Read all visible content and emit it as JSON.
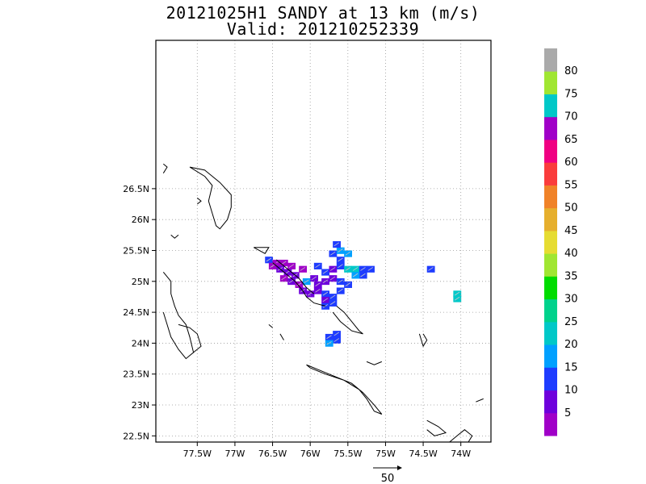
{
  "title": {
    "line1": "20121025H1 SANDY at 13 km (m/s)",
    "line2": "Valid: 201210252339"
  },
  "map": {
    "lon_range": [
      -78.05,
      -73.6
    ],
    "lat_range": [
      22.4,
      28.9
    ],
    "lon_ticks": [
      {
        "value": -77.5,
        "label": "77.5W"
      },
      {
        "value": -77.0,
        "label": "77W"
      },
      {
        "value": -76.5,
        "label": "76.5W"
      },
      {
        "value": -76.0,
        "label": "76W"
      },
      {
        "value": -75.5,
        "label": "75.5W"
      },
      {
        "value": -75.0,
        "label": "75W"
      },
      {
        "value": -74.5,
        "label": "74.5W"
      },
      {
        "value": -74.0,
        "label": "74W"
      }
    ],
    "lat_ticks": [
      {
        "value": 26.5,
        "label": "26.5N"
      },
      {
        "value": 26.0,
        "label": "26N"
      },
      {
        "value": 25.5,
        "label": "25.5N"
      },
      {
        "value": 25.0,
        "label": "25N"
      },
      {
        "value": 24.5,
        "label": "24.5N"
      },
      {
        "value": 24.0,
        "label": "24N"
      },
      {
        "value": 23.5,
        "label": "23.5N"
      },
      {
        "value": 23.0,
        "label": "23N"
      },
      {
        "value": 22.5,
        "label": "22.5N"
      }
    ],
    "grid": "dotted",
    "coastline_color": "#000000"
  },
  "colorbar": {
    "labels": [
      "5",
      "10",
      "15",
      "20",
      "25",
      "30",
      "35",
      "40",
      "45",
      "50",
      "55",
      "60",
      "65",
      "70",
      "75",
      "80"
    ],
    "colors": [
      "#a000c8",
      "#6e00dc",
      "#1e3cff",
      "#00a0ff",
      "#00c8c8",
      "#00d28c",
      "#00dc00",
      "#a0e632",
      "#e6dc32",
      "#e6af2d",
      "#f08228",
      "#fa3c3c",
      "#f00082",
      "#a000c8",
      "#00c8c8",
      "#a0e632",
      "#aaaaaa"
    ]
  },
  "reference_vector": {
    "label": "50"
  },
  "wind_cells": [
    {
      "lon": -76.55,
      "lat": 25.35,
      "c": "#1e3cff"
    },
    {
      "lon": -76.45,
      "lat": 25.3,
      "c": "#a000c8"
    },
    {
      "lon": -76.35,
      "lat": 25.3,
      "c": "#a000c8"
    },
    {
      "lon": -76.25,
      "lat": 25.25,
      "c": "#a000c8"
    },
    {
      "lon": -76.5,
      "lat": 25.25,
      "c": "#a000c8"
    },
    {
      "lon": -76.4,
      "lat": 25.2,
      "c": "#6e00dc"
    },
    {
      "lon": -76.3,
      "lat": 25.15,
      "c": "#6e00dc"
    },
    {
      "lon": -76.2,
      "lat": 25.1,
      "c": "#6e00dc"
    },
    {
      "lon": -76.1,
      "lat": 25.2,
      "c": "#a000c8"
    },
    {
      "lon": -76.35,
      "lat": 25.05,
      "c": "#a000c8"
    },
    {
      "lon": -76.25,
      "lat": 25.0,
      "c": "#6e00dc"
    },
    {
      "lon": -76.15,
      "lat": 24.95,
      "c": "#a000c8"
    },
    {
      "lon": -76.05,
      "lat": 25.0,
      "c": "#00a0ff"
    },
    {
      "lon": -75.95,
      "lat": 25.05,
      "c": "#6e00dc"
    },
    {
      "lon": -76.1,
      "lat": 24.85,
      "c": "#6e00dc"
    },
    {
      "lon": -76.0,
      "lat": 24.8,
      "c": "#6e00dc"
    },
    {
      "lon": -75.9,
      "lat": 24.85,
      "c": "#6e00dc"
    },
    {
      "lon": -75.8,
      "lat": 24.8,
      "c": "#1e3cff"
    },
    {
      "lon": -75.7,
      "lat": 24.75,
      "c": "#1e3cff"
    },
    {
      "lon": -75.8,
      "lat": 24.7,
      "c": "#6e00dc"
    },
    {
      "lon": -75.7,
      "lat": 24.65,
      "c": "#1e3cff"
    },
    {
      "lon": -75.8,
      "lat": 24.6,
      "c": "#1e3cff"
    },
    {
      "lon": -75.9,
      "lat": 24.95,
      "c": "#6e00dc"
    },
    {
      "lon": -75.8,
      "lat": 25.0,
      "c": "#6e00dc"
    },
    {
      "lon": -75.7,
      "lat": 25.05,
      "c": "#6e00dc"
    },
    {
      "lon": -75.6,
      "lat": 25.0,
      "c": "#1e3cff"
    },
    {
      "lon": -75.5,
      "lat": 24.95,
      "c": "#1e3cff"
    },
    {
      "lon": -75.6,
      "lat": 24.85,
      "c": "#1e3cff"
    },
    {
      "lon": -75.8,
      "lat": 25.15,
      "c": "#1e3cff"
    },
    {
      "lon": -75.9,
      "lat": 25.25,
      "c": "#1e3cff"
    },
    {
      "lon": -75.7,
      "lat": 25.2,
      "c": "#6e00dc"
    },
    {
      "lon": -75.6,
      "lat": 25.25,
      "c": "#1e3cff"
    },
    {
      "lon": -75.5,
      "lat": 25.2,
      "c": "#00c8c8"
    },
    {
      "lon": -75.4,
      "lat": 25.2,
      "c": "#00c8c8"
    },
    {
      "lon": -75.3,
      "lat": 25.2,
      "c": "#1e3cff"
    },
    {
      "lon": -75.2,
      "lat": 25.2,
      "c": "#1e3cff"
    },
    {
      "lon": -75.3,
      "lat": 25.1,
      "c": "#1e3cff"
    },
    {
      "lon": -75.4,
      "lat": 25.1,
      "c": "#00a0ff"
    },
    {
      "lon": -75.6,
      "lat": 25.35,
      "c": "#1e3cff"
    },
    {
      "lon": -75.7,
      "lat": 25.45,
      "c": "#1e3cff"
    },
    {
      "lon": -75.6,
      "lat": 25.5,
      "c": "#00a0ff"
    },
    {
      "lon": -75.65,
      "lat": 25.6,
      "c": "#1e3cff"
    },
    {
      "lon": -75.5,
      "lat": 25.45,
      "c": "#00a0ff"
    },
    {
      "lon": -74.4,
      "lat": 25.2,
      "c": "#1e3cff"
    },
    {
      "lon": -74.05,
      "lat": 24.8,
      "c": "#00c8c8"
    },
    {
      "lon": -74.05,
      "lat": 24.72,
      "c": "#00c8c8"
    },
    {
      "lon": -75.75,
      "lat": 24.1,
      "c": "#1e3cff"
    },
    {
      "lon": -75.65,
      "lat": 24.05,
      "c": "#1e3cff"
    },
    {
      "lon": -75.75,
      "lat": 24.0,
      "c": "#00a0ff"
    },
    {
      "lon": -75.65,
      "lat": 24.15,
      "c": "#1e3cff"
    }
  ],
  "coastlines": [
    [
      [
        -77.95,
        26.75
      ],
      [
        -77.9,
        26.85
      ],
      [
        -77.95,
        26.9
      ]
    ],
    [
      [
        -77.6,
        26.85
      ],
      [
        -77.4,
        26.8
      ],
      [
        -77.2,
        26.6
      ],
      [
        -77.05,
        26.4
      ],
      [
        -77.05,
        26.2
      ],
      [
        -77.1,
        26.0
      ],
      [
        -77.2,
        25.85
      ],
      [
        -77.25,
        25.9
      ],
      [
        -77.3,
        26.1
      ],
      [
        -77.35,
        26.3
      ],
      [
        -77.3,
        26.55
      ],
      [
        -77.4,
        26.7
      ],
      [
        -77.6,
        26.85
      ]
    ],
    [
      [
        -77.5,
        26.35
      ],
      [
        -77.45,
        26.3
      ],
      [
        -77.5,
        26.25
      ]
    ],
    [
      [
        -77.85,
        25.75
      ],
      [
        -77.8,
        25.7
      ],
      [
        -77.75,
        25.75
      ]
    ],
    [
      [
        -76.75,
        25.55
      ],
      [
        -76.6,
        25.45
      ],
      [
        -76.55,
        25.55
      ],
      [
        -76.75,
        25.55
      ]
    ],
    [
      [
        -76.5,
        25.3
      ],
      [
        -76.35,
        25.15
      ],
      [
        -76.2,
        25.0
      ],
      [
        -76.1,
        24.85
      ],
      [
        -76.05,
        24.75
      ],
      [
        -75.95,
        24.65
      ],
      [
        -75.8,
        24.6
      ]
    ],
    [
      [
        -76.45,
        25.35
      ],
      [
        -76.3,
        25.2
      ],
      [
        -76.15,
        25.05
      ],
      [
        -76.05,
        24.9
      ],
      [
        -75.95,
        24.8
      ]
    ],
    [
      [
        -77.95,
        25.15
      ],
      [
        -77.85,
        25.0
      ],
      [
        -77.85,
        24.8
      ],
      [
        -77.8,
        24.6
      ],
      [
        -77.75,
        24.45
      ],
      [
        -77.65,
        24.3
      ],
      [
        -77.6,
        24.1
      ],
      [
        -77.55,
        23.85
      ],
      [
        -77.65,
        23.75
      ],
      [
        -77.75,
        23.9
      ],
      [
        -77.85,
        24.1
      ],
      [
        -77.9,
        24.3
      ],
      [
        -77.95,
        24.5
      ]
    ],
    [
      [
        -77.75,
        24.3
      ],
      [
        -77.6,
        24.25
      ],
      [
        -77.5,
        24.15
      ],
      [
        -77.45,
        23.95
      ],
      [
        -77.55,
        23.85
      ]
    ],
    [
      [
        -76.55,
        24.3
      ],
      [
        -76.5,
        24.25
      ]
    ],
    [
      [
        -76.4,
        24.15
      ],
      [
        -76.35,
        24.05
      ]
    ],
    [
      [
        -75.65,
        24.6
      ],
      [
        -75.55,
        24.5
      ],
      [
        -75.45,
        24.35
      ],
      [
        -75.35,
        24.2
      ],
      [
        -75.3,
        24.15
      ],
      [
        -75.45,
        24.2
      ],
      [
        -75.6,
        24.35
      ],
      [
        -75.7,
        24.5
      ]
    ],
    [
      [
        -74.55,
        24.15
      ],
      [
        -74.5,
        23.95
      ],
      [
        -74.45,
        24.05
      ],
      [
        -74.5,
        24.15
      ]
    ],
    [
      [
        -76.05,
        23.65
      ],
      [
        -75.85,
        23.55
      ],
      [
        -75.65,
        23.45
      ],
      [
        -75.45,
        23.35
      ],
      [
        -75.3,
        23.2
      ],
      [
        -75.15,
        23.0
      ],
      [
        -75.05,
        22.85
      ],
      [
        -75.15,
        22.9
      ],
      [
        -75.25,
        23.1
      ],
      [
        -75.35,
        23.25
      ],
      [
        -75.55,
        23.4
      ],
      [
        -75.8,
        23.5
      ],
      [
        -76.0,
        23.6
      ],
      [
        -76.05,
        23.65
      ]
    ],
    [
      [
        -75.25,
        23.7
      ],
      [
        -75.15,
        23.65
      ],
      [
        -75.05,
        23.7
      ]
    ],
    [
      [
        -74.45,
        22.75
      ],
      [
        -74.3,
        22.65
      ],
      [
        -74.2,
        22.55
      ],
      [
        -74.35,
        22.5
      ],
      [
        -74.45,
        22.6
      ]
    ],
    [
      [
        -74.15,
        22.4
      ],
      [
        -74.05,
        22.5
      ],
      [
        -73.95,
        22.6
      ],
      [
        -73.85,
        22.5
      ],
      [
        -73.9,
        22.4
      ]
    ],
    [
      [
        -73.8,
        23.05
      ],
      [
        -73.7,
        23.1
      ]
    ]
  ]
}
